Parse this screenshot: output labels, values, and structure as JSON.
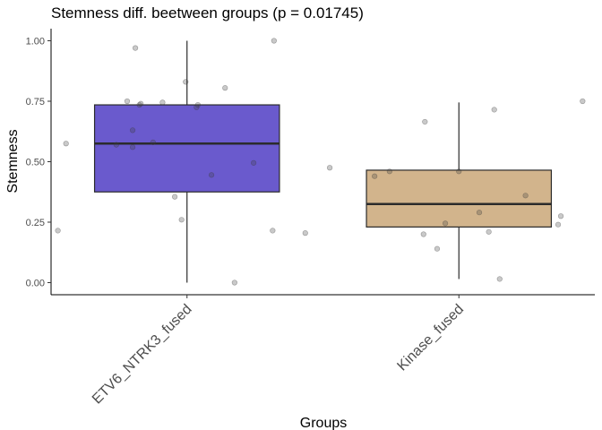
{
  "chart_data": {
    "type": "box",
    "title": "Stemness diff. beetween groups (p = 0.01745)",
    "xlabel": "Groups",
    "ylabel": "Stemness",
    "ylim": [
      -0.05,
      1.05
    ],
    "yticks": [
      0,
      0.25,
      0.5,
      0.75,
      1
    ],
    "ytick_labels": [
      "0.00",
      "0.25",
      "0.50",
      "0.75",
      "1.00"
    ],
    "grid": false,
    "legend": "none",
    "categories": [
      "ETV6_NTRK3_fused",
      "Kinase_fused"
    ],
    "colors": {
      "ETV6_NTRK3_fused": "#6a5acd",
      "Kinase_fused": "#d2b48c"
    },
    "boxes": [
      {
        "name": "ETV6_NTRK3_fused",
        "min": 0.0,
        "q1": 0.375,
        "median": 0.575,
        "q3": 0.735,
        "max": 1.0
      },
      {
        "name": "Kinase_fused",
        "min": 0.015,
        "q1": 0.23,
        "median": 0.325,
        "q3": 0.465,
        "max": 0.745
      }
    ],
    "points": [
      {
        "group": "ETV6_NTRK3_fused",
        "jitter": -0.19,
        "y": 0.97
      },
      {
        "group": "ETV6_NTRK3_fused",
        "jitter": -0.005,
        "y": 0.83
      },
      {
        "group": "ETV6_NTRK3_fused",
        "jitter": 0.14,
        "y": 0.805
      },
      {
        "group": "ETV6_NTRK3_fused",
        "jitter": 0.32,
        "y": 1.0
      },
      {
        "group": "ETV6_NTRK3_fused",
        "jitter": -0.22,
        "y": 0.75
      },
      {
        "group": "ETV6_NTRK3_fused",
        "jitter": -0.17,
        "y": 0.74
      },
      {
        "group": "ETV6_NTRK3_fused",
        "jitter": -0.175,
        "y": 0.735
      },
      {
        "group": "ETV6_NTRK3_fused",
        "jitter": -0.09,
        "y": 0.745
      },
      {
        "group": "ETV6_NTRK3_fused",
        "jitter": 0.04,
        "y": 0.735
      },
      {
        "group": "ETV6_NTRK3_fused",
        "jitter": 0.035,
        "y": 0.725
      },
      {
        "group": "ETV6_NTRK3_fused",
        "jitter": -0.2,
        "y": 0.63
      },
      {
        "group": "ETV6_NTRK3_fused",
        "jitter": -0.26,
        "y": 0.57
      },
      {
        "group": "ETV6_NTRK3_fused",
        "jitter": -0.125,
        "y": 0.58
      },
      {
        "group": "ETV6_NTRK3_fused",
        "jitter": -0.2,
        "y": 0.56
      },
      {
        "group": "ETV6_NTRK3_fused",
        "jitter": -0.445,
        "y": 0.575
      },
      {
        "group": "ETV6_NTRK3_fused",
        "jitter": 0.245,
        "y": 0.495
      },
      {
        "group": "ETV6_NTRK3_fused",
        "jitter": 0.09,
        "y": 0.445
      },
      {
        "group": "ETV6_NTRK3_fused",
        "jitter": -0.045,
        "y": 0.355
      },
      {
        "group": "ETV6_NTRK3_fused",
        "jitter": -0.02,
        "y": 0.26
      },
      {
        "group": "ETV6_NTRK3_fused",
        "jitter": -0.475,
        "y": 0.215
      },
      {
        "group": "ETV6_NTRK3_fused",
        "jitter": 0.315,
        "y": 0.215
      },
      {
        "group": "ETV6_NTRK3_fused",
        "jitter": 0.435,
        "y": 0.205
      },
      {
        "group": "ETV6_NTRK3_fused",
        "jitter": 0.175,
        "y": 0.0
      },
      {
        "group": "Kinase_fused",
        "jitter": 0.455,
        "y": 0.75
      },
      {
        "group": "Kinase_fused",
        "jitter": 0.13,
        "y": 0.715
      },
      {
        "group": "Kinase_fused",
        "jitter": -0.125,
        "y": 0.665
      },
      {
        "group": "Kinase_fused",
        "jitter": -0.475,
        "y": 0.475
      },
      {
        "group": "Kinase_fused",
        "jitter": -0.255,
        "y": 0.46
      },
      {
        "group": "Kinase_fused",
        "jitter": -0.31,
        "y": 0.44
      },
      {
        "group": "Kinase_fused",
        "jitter": 0.0,
        "y": 0.46
      },
      {
        "group": "Kinase_fused",
        "jitter": 0.245,
        "y": 0.36
      },
      {
        "group": "Kinase_fused",
        "jitter": 0.075,
        "y": 0.29
      },
      {
        "group": "Kinase_fused",
        "jitter": 0.375,
        "y": 0.275
      },
      {
        "group": "Kinase_fused",
        "jitter": 0.365,
        "y": 0.24
      },
      {
        "group": "Kinase_fused",
        "jitter": -0.05,
        "y": 0.245
      },
      {
        "group": "Kinase_fused",
        "jitter": 0.11,
        "y": 0.21
      },
      {
        "group": "Kinase_fused",
        "jitter": -0.13,
        "y": 0.2
      },
      {
        "group": "Kinase_fused",
        "jitter": -0.08,
        "y": 0.14
      },
      {
        "group": "Kinase_fused",
        "jitter": 0.15,
        "y": 0.015
      }
    ]
  }
}
